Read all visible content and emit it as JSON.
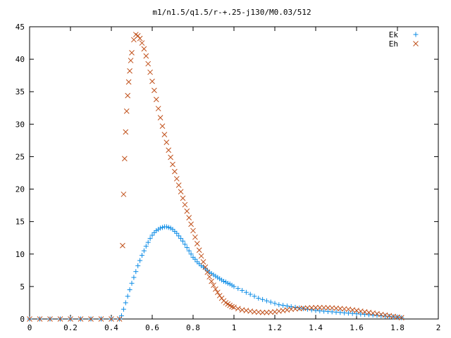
{
  "chart_data": {
    "type": "scatter",
    "title": "m1/n1.5/q1.5/r-+.25-j130/M0.03/512",
    "xlabel": "",
    "ylabel": "",
    "xlim": [
      0,
      2
    ],
    "ylim": [
      0,
      45
    ],
    "xticks": [
      "0",
      "0.2",
      "0.4",
      "0.6",
      "0.8",
      "1",
      "1.2",
      "1.4",
      "1.6",
      "1.8",
      "2"
    ],
    "yticks": [
      "0",
      "5",
      "10",
      "15",
      "20",
      "25",
      "30",
      "35",
      "40",
      "45"
    ],
    "grid": false,
    "legend_position": "top-right",
    "series": [
      {
        "name": "Ek",
        "marker": "plus",
        "color": "#0c8ce6",
        "x": [
          0.0,
          0.05,
          0.1,
          0.15,
          0.2,
          0.25,
          0.3,
          0.35,
          0.4,
          0.44,
          0.45,
          0.46,
          0.47,
          0.48,
          0.49,
          0.5,
          0.51,
          0.52,
          0.53,
          0.54,
          0.55,
          0.56,
          0.57,
          0.58,
          0.59,
          0.6,
          0.61,
          0.62,
          0.63,
          0.64,
          0.65,
          0.66,
          0.67,
          0.68,
          0.69,
          0.7,
          0.71,
          0.72,
          0.73,
          0.74,
          0.75,
          0.76,
          0.77,
          0.78,
          0.79,
          0.8,
          0.81,
          0.82,
          0.83,
          0.84,
          0.85,
          0.86,
          0.87,
          0.88,
          0.89,
          0.9,
          0.91,
          0.92,
          0.93,
          0.94,
          0.95,
          0.96,
          0.97,
          0.98,
          0.99,
          1.0,
          1.02,
          1.04,
          1.06,
          1.08,
          1.1,
          1.12,
          1.14,
          1.16,
          1.18,
          1.2,
          1.22,
          1.24,
          1.26,
          1.28,
          1.3,
          1.32,
          1.34,
          1.36,
          1.38,
          1.4,
          1.42,
          1.44,
          1.46,
          1.48,
          1.5,
          1.52,
          1.54,
          1.56,
          1.58,
          1.6,
          1.62,
          1.64,
          1.66,
          1.68,
          1.7,
          1.72,
          1.74,
          1.76,
          1.78,
          1.8,
          1.82
        ],
        "y": [
          0,
          0,
          0,
          0,
          0,
          0,
          0,
          0,
          0,
          0,
          0.5,
          1.5,
          2.5,
          3.5,
          4.5,
          5.5,
          6.4,
          7.3,
          8.2,
          9.0,
          9.8,
          10.5,
          11.2,
          11.8,
          12.4,
          12.9,
          13.3,
          13.6,
          13.8,
          14.0,
          14.1,
          14.2,
          14.2,
          14.1,
          14.0,
          13.8,
          13.5,
          13.2,
          12.8,
          12.4,
          12.0,
          11.5,
          11.0,
          10.5,
          10.0,
          9.5,
          9.2,
          8.8,
          8.5,
          8.2,
          8.0,
          7.7,
          7.5,
          7.2,
          7.0,
          6.8,
          6.6,
          6.4,
          6.2,
          6.0,
          5.8,
          5.7,
          5.5,
          5.4,
          5.2,
          5.0,
          4.7,
          4.4,
          4.1,
          3.8,
          3.5,
          3.2,
          3.0,
          2.8,
          2.6,
          2.4,
          2.2,
          2.1,
          2.0,
          1.9,
          1.8,
          1.7,
          1.6,
          1.5,
          1.4,
          1.3,
          1.25,
          1.2,
          1.15,
          1.1,
          1.05,
          1.0,
          0.95,
          0.9,
          0.85,
          0.8,
          0.75,
          0.7,
          0.65,
          0.6,
          0.55,
          0.5,
          0.45,
          0.4,
          0.35,
          0.3,
          0.2
        ]
      },
      {
        "name": "Eh",
        "marker": "cross",
        "color": "#c0501a",
        "x": [
          0.0,
          0.05,
          0.1,
          0.15,
          0.2,
          0.25,
          0.3,
          0.35,
          0.4,
          0.44,
          0.455,
          0.46,
          0.465,
          0.47,
          0.475,
          0.48,
          0.485,
          0.49,
          0.495,
          0.5,
          0.51,
          0.52,
          0.53,
          0.54,
          0.55,
          0.56,
          0.57,
          0.58,
          0.59,
          0.6,
          0.61,
          0.62,
          0.63,
          0.64,
          0.65,
          0.66,
          0.67,
          0.68,
          0.69,
          0.7,
          0.71,
          0.72,
          0.73,
          0.74,
          0.75,
          0.76,
          0.77,
          0.78,
          0.79,
          0.8,
          0.81,
          0.82,
          0.83,
          0.84,
          0.85,
          0.86,
          0.87,
          0.88,
          0.89,
          0.9,
          0.91,
          0.92,
          0.93,
          0.94,
          0.95,
          0.96,
          0.97,
          0.98,
          0.99,
          1.0,
          1.02,
          1.04,
          1.06,
          1.08,
          1.1,
          1.12,
          1.14,
          1.16,
          1.18,
          1.2,
          1.22,
          1.24,
          1.26,
          1.28,
          1.3,
          1.32,
          1.34,
          1.36,
          1.38,
          1.4,
          1.42,
          1.44,
          1.46,
          1.48,
          1.5,
          1.52,
          1.54,
          1.56,
          1.58,
          1.6,
          1.62,
          1.64,
          1.66,
          1.68,
          1.7,
          1.72,
          1.74,
          1.76,
          1.78,
          1.8,
          1.82
        ],
        "y": [
          0,
          0,
          0,
          0,
          0,
          0,
          0,
          0,
          0,
          0,
          11.3,
          19.2,
          24.7,
          28.8,
          32.0,
          34.4,
          36.5,
          38.2,
          39.8,
          41.0,
          43.0,
          43.8,
          43.6,
          43.2,
          42.5,
          41.6,
          40.5,
          39.3,
          38.0,
          36.6,
          35.2,
          33.8,
          32.4,
          31.0,
          29.7,
          28.4,
          27.2,
          26.0,
          24.9,
          23.8,
          22.7,
          21.6,
          20.6,
          19.6,
          18.6,
          17.6,
          16.6,
          15.6,
          14.6,
          13.6,
          12.6,
          11.6,
          10.6,
          9.7,
          8.8,
          8.0,
          7.2,
          6.5,
          5.8,
          5.2,
          4.6,
          4.1,
          3.6,
          3.2,
          2.8,
          2.5,
          2.3,
          2.1,
          1.9,
          1.8,
          1.6,
          1.4,
          1.3,
          1.2,
          1.1,
          1.05,
          1.0,
          1.0,
          1.05,
          1.1,
          1.2,
          1.3,
          1.4,
          1.5,
          1.55,
          1.6,
          1.65,
          1.7,
          1.72,
          1.75,
          1.75,
          1.74,
          1.72,
          1.7,
          1.65,
          1.6,
          1.55,
          1.5,
          1.4,
          1.3,
          1.2,
          1.1,
          1.0,
          0.9,
          0.8,
          0.7,
          0.6,
          0.5,
          0.4,
          0.3,
          0.2
        ]
      }
    ]
  }
}
